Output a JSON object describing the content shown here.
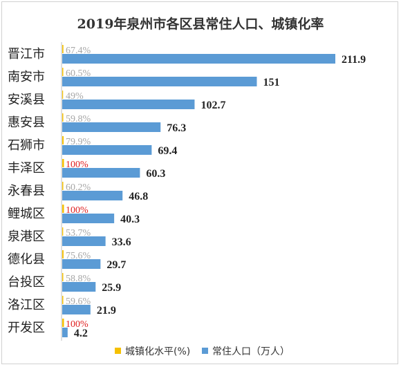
{
  "chart_data": {
    "type": "bar",
    "orientation": "horizontal",
    "title": "2019年泉州市各区县常住人口、城镇化率",
    "categories": [
      "晋江市",
      "南安市",
      "安溪县",
      "惠安县",
      "石狮市",
      "丰泽区",
      "永春县",
      "鲤城区",
      "泉港区",
      "德化县",
      "台投区",
      "洛江区",
      "开发区"
    ],
    "series": [
      {
        "name": "城镇化水平(%)",
        "color": "#F5C000",
        "values": [
          67.4,
          60.5,
          49,
          59.8,
          79.9,
          100,
          60.2,
          100,
          53.7,
          75.6,
          58.8,
          59.6,
          100
        ],
        "labels": [
          "67.4%",
          "60.5%",
          "49%",
          "59.8%",
          "79.9%",
          "100%",
          "60.2%",
          "100%",
          "53.7%",
          "75.6%",
          "58.8%",
          "59.6%",
          "100%"
        ]
      },
      {
        "name": "常住人口（万人）",
        "color": "#5B9BD5",
        "values": [
          211.9,
          151,
          102.7,
          76.3,
          69.4,
          60.3,
          46.8,
          40.3,
          33.6,
          29.7,
          25.9,
          21.9,
          4.2
        ],
        "labels": [
          "211.9",
          "151",
          "102.7",
          "76.3",
          "69.4",
          "60.3",
          "46.8",
          "40.3",
          "33.6",
          "29.7",
          "25.9",
          "21.9",
          "4.2"
        ]
      }
    ],
    "pct_label_color_normal": "#A6A6A6",
    "pct_label_color_highlight": "#E02020",
    "grid": false,
    "legend_position": "bottom"
  },
  "legend": {
    "urbanization_label": "城镇化水平(%)",
    "population_label": "常住人口（万人）"
  }
}
